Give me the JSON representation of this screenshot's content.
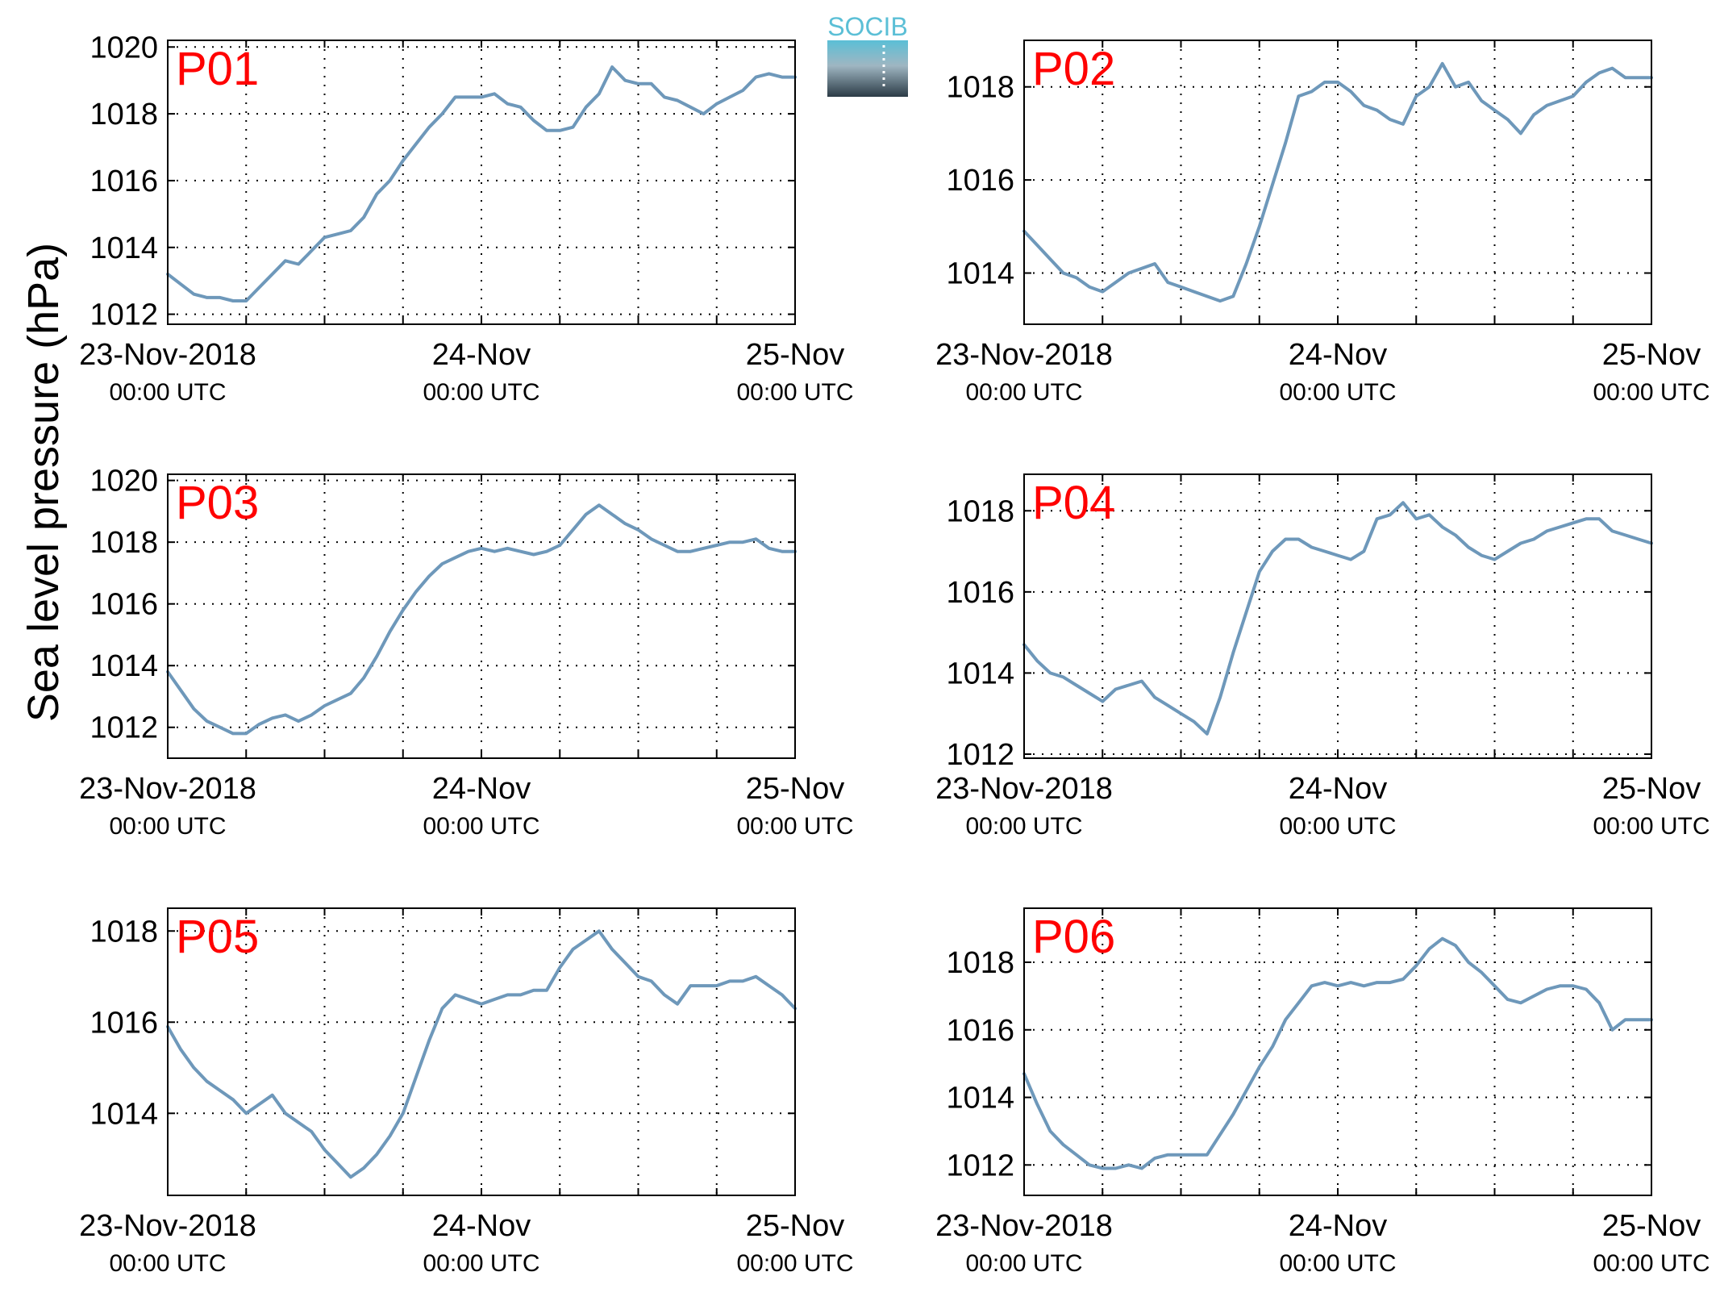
{
  "figure": {
    "ylabel": "Sea level pressure (hPa)",
    "logo_text": "SOCIB",
    "colors": {
      "line": "#6e98ba",
      "panel_label": "#ff0000",
      "axis": "#000000"
    }
  },
  "chart_data": [
    {
      "type": "line",
      "panel": "P01",
      "ylim": [
        1011.7,
        1020.2
      ],
      "yticks": [
        1012,
        1014,
        1016,
        1018,
        1020
      ],
      "xlim": [
        0,
        48
      ],
      "grid": true,
      "xtick_labels": [
        "23-Nov-2018",
        "24-Nov",
        "25-Nov"
      ],
      "xtick_sublabels": [
        "00:00 UTC",
        "00:00 UTC",
        "00:00 UTC"
      ],
      "x": [
        0,
        1,
        2,
        3,
        4,
        5,
        6,
        7,
        8,
        9,
        10,
        11,
        12,
        13,
        14,
        15,
        16,
        17,
        18,
        19,
        20,
        21,
        22,
        23,
        24,
        25,
        26,
        27,
        28,
        29,
        30,
        31,
        32,
        33,
        34,
        35,
        36,
        37,
        38,
        39,
        40,
        41,
        42,
        43,
        44,
        45,
        46,
        47,
        48
      ],
      "y": [
        1013.2,
        1012.9,
        1012.6,
        1012.5,
        1012.5,
        1012.4,
        1012.4,
        1012.8,
        1013.2,
        1013.6,
        1013.5,
        1013.9,
        1014.3,
        1014.4,
        1014.5,
        1014.9,
        1015.6,
        1016.0,
        1016.6,
        1017.1,
        1017.6,
        1018.0,
        1018.5,
        1018.5,
        1018.5,
        1018.6,
        1018.3,
        1018.2,
        1017.8,
        1017.5,
        1017.5,
        1017.6,
        1018.2,
        1018.6,
        1019.4,
        1019.0,
        1018.9,
        1018.9,
        1018.5,
        1018.4,
        1018.2,
        1018.0,
        1018.3,
        1018.5,
        1018.7,
        1019.1,
        1019.2,
        1019.1,
        1019.1
      ]
    },
    {
      "type": "line",
      "panel": "P02",
      "ylim": [
        1012.9,
        1019.0
      ],
      "yticks": [
        1014,
        1016,
        1018
      ],
      "xlim": [
        0,
        48
      ],
      "grid": true,
      "xtick_labels": [
        "23-Nov-2018",
        "24-Nov",
        "25-Nov"
      ],
      "xtick_sublabels": [
        "00:00 UTC",
        "00:00 UTC",
        "00:00 UTC"
      ],
      "x": [
        0,
        1,
        2,
        3,
        4,
        5,
        6,
        7,
        8,
        9,
        10,
        11,
        12,
        13,
        14,
        15,
        16,
        17,
        18,
        19,
        20,
        21,
        22,
        23,
        24,
        25,
        26,
        27,
        28,
        29,
        30,
        31,
        32,
        33,
        34,
        35,
        36,
        37,
        38,
        39,
        40,
        41,
        42,
        43,
        44,
        45,
        46,
        47,
        48
      ],
      "y": [
        1014.9,
        1014.6,
        1014.3,
        1014.0,
        1013.9,
        1013.7,
        1013.6,
        1013.8,
        1014.0,
        1014.1,
        1014.2,
        1013.8,
        1013.7,
        1013.6,
        1013.5,
        1013.4,
        1013.5,
        1014.2,
        1015.0,
        1015.9,
        1016.8,
        1017.8,
        1017.9,
        1018.1,
        1018.1,
        1017.9,
        1017.6,
        1017.5,
        1017.3,
        1017.2,
        1017.8,
        1018.0,
        1018.5,
        1018.0,
        1018.1,
        1017.7,
        1017.5,
        1017.3,
        1017.0,
        1017.4,
        1017.6,
        1017.7,
        1017.8,
        1018.1,
        1018.3,
        1018.4,
        1018.2,
        1018.2,
        1018.2
      ]
    },
    {
      "type": "line",
      "panel": "P03",
      "ylim": [
        1011.0,
        1020.2
      ],
      "yticks": [
        1012,
        1014,
        1016,
        1018,
        1020
      ],
      "xlim": [
        0,
        48
      ],
      "grid": true,
      "xtick_labels": [
        "23-Nov-2018",
        "24-Nov",
        "25-Nov"
      ],
      "xtick_sublabels": [
        "00:00 UTC",
        "00:00 UTC",
        "00:00 UTC"
      ],
      "x": [
        0,
        1,
        2,
        3,
        4,
        5,
        6,
        7,
        8,
        9,
        10,
        11,
        12,
        13,
        14,
        15,
        16,
        17,
        18,
        19,
        20,
        21,
        22,
        23,
        24,
        25,
        26,
        27,
        28,
        29,
        30,
        31,
        32,
        33,
        34,
        35,
        36,
        37,
        38,
        39,
        40,
        41,
        42,
        43,
        44,
        45,
        46,
        47,
        48
      ],
      "y": [
        1013.8,
        1013.2,
        1012.6,
        1012.2,
        1012.0,
        1011.8,
        1011.8,
        1012.1,
        1012.3,
        1012.4,
        1012.2,
        1012.4,
        1012.7,
        1012.9,
        1013.1,
        1013.6,
        1014.3,
        1015.1,
        1015.8,
        1016.4,
        1016.9,
        1017.3,
        1017.5,
        1017.7,
        1017.8,
        1017.7,
        1017.8,
        1017.7,
        1017.6,
        1017.7,
        1017.9,
        1018.4,
        1018.9,
        1019.2,
        1018.9,
        1018.6,
        1018.4,
        1018.1,
        1017.9,
        1017.7,
        1017.7,
        1017.8,
        1017.9,
        1018.0,
        1018.0,
        1018.1,
        1017.8,
        1017.7,
        1017.7
      ]
    },
    {
      "type": "line",
      "panel": "P04",
      "ylim": [
        1011.9,
        1018.9
      ],
      "yticks": [
        1012,
        1014,
        1016,
        1018
      ],
      "xlim": [
        0,
        48
      ],
      "grid": true,
      "xtick_labels": [
        "23-Nov-2018",
        "24-Nov",
        "25-Nov"
      ],
      "xtick_sublabels": [
        "00:00 UTC",
        "00:00 UTC",
        "00:00 UTC"
      ],
      "x": [
        0,
        1,
        2,
        3,
        4,
        5,
        6,
        7,
        8,
        9,
        10,
        11,
        12,
        13,
        14,
        15,
        16,
        17,
        18,
        19,
        20,
        21,
        22,
        23,
        24,
        25,
        26,
        27,
        28,
        29,
        30,
        31,
        32,
        33,
        34,
        35,
        36,
        37,
        38,
        39,
        40,
        41,
        42,
        43,
        44,
        45,
        46,
        47,
        48
      ],
      "y": [
        1014.7,
        1014.3,
        1014.0,
        1013.9,
        1013.7,
        1013.5,
        1013.3,
        1013.6,
        1013.7,
        1013.8,
        1013.4,
        1013.2,
        1013.0,
        1012.8,
        1012.5,
        1013.4,
        1014.5,
        1015.5,
        1016.5,
        1017.0,
        1017.3,
        1017.3,
        1017.1,
        1017.0,
        1016.9,
        1016.8,
        1017.0,
        1017.8,
        1017.9,
        1018.2,
        1017.8,
        1017.9,
        1017.6,
        1017.4,
        1017.1,
        1016.9,
        1016.8,
        1017.0,
        1017.2,
        1017.3,
        1017.5,
        1017.6,
        1017.7,
        1017.8,
        1017.8,
        1017.5,
        1017.4,
        1017.3,
        1017.2
      ]
    },
    {
      "type": "line",
      "panel": "P05",
      "ylim": [
        1012.2,
        1018.5
      ],
      "yticks": [
        1014,
        1016,
        1018
      ],
      "xlim": [
        0,
        48
      ],
      "grid": true,
      "xtick_labels": [
        "23-Nov-2018",
        "24-Nov",
        "25-Nov"
      ],
      "xtick_sublabels": [
        "00:00 UTC",
        "00:00 UTC",
        "00:00 UTC"
      ],
      "x": [
        0,
        1,
        2,
        3,
        4,
        5,
        6,
        7,
        8,
        9,
        10,
        11,
        12,
        13,
        14,
        15,
        16,
        17,
        18,
        19,
        20,
        21,
        22,
        23,
        24,
        25,
        26,
        27,
        28,
        29,
        30,
        31,
        32,
        33,
        34,
        35,
        36,
        37,
        38,
        39,
        40,
        41,
        42,
        43,
        44,
        45,
        46,
        47,
        48
      ],
      "y": [
        1015.9,
        1015.4,
        1015.0,
        1014.7,
        1014.5,
        1014.3,
        1014.0,
        1014.2,
        1014.4,
        1014.0,
        1013.8,
        1013.6,
        1013.2,
        1012.9,
        1012.6,
        1012.8,
        1013.1,
        1013.5,
        1014.0,
        1014.8,
        1015.6,
        1016.3,
        1016.6,
        1016.5,
        1016.4,
        1016.5,
        1016.6,
        1016.6,
        1016.7,
        1016.7,
        1017.2,
        1017.6,
        1017.8,
        1018.0,
        1017.6,
        1017.3,
        1017.0,
        1016.9,
        1016.6,
        1016.4,
        1016.8,
        1016.8,
        1016.8,
        1016.9,
        1016.9,
        1017.0,
        1016.8,
        1016.6,
        1016.3
      ]
    },
    {
      "type": "line",
      "panel": "P06",
      "ylim": [
        1011.1,
        1019.6
      ],
      "yticks": [
        1012,
        1014,
        1016,
        1018
      ],
      "xlim": [
        0,
        48
      ],
      "grid": true,
      "xtick_labels": [
        "23-Nov-2018",
        "24-Nov",
        "25-Nov"
      ],
      "xtick_sublabels": [
        "00:00 UTC",
        "00:00 UTC",
        "00:00 UTC"
      ],
      "x": [
        0,
        1,
        2,
        3,
        4,
        5,
        6,
        7,
        8,
        9,
        10,
        11,
        12,
        13,
        14,
        15,
        16,
        17,
        18,
        19,
        20,
        21,
        22,
        23,
        24,
        25,
        26,
        27,
        28,
        29,
        30,
        31,
        32,
        33,
        34,
        35,
        36,
        37,
        38,
        39,
        40,
        41,
        42,
        43,
        44,
        45,
        46,
        47,
        48
      ],
      "y": [
        1014.7,
        1013.8,
        1013.0,
        1012.6,
        1012.3,
        1012.0,
        1011.9,
        1011.9,
        1012.0,
        1011.9,
        1012.2,
        1012.3,
        1012.3,
        1012.3,
        1012.3,
        1012.9,
        1013.5,
        1014.2,
        1014.9,
        1015.5,
        1016.3,
        1016.8,
        1017.3,
        1017.4,
        1017.3,
        1017.4,
        1017.3,
        1017.4,
        1017.4,
        1017.5,
        1017.9,
        1018.4,
        1018.7,
        1018.5,
        1018.0,
        1017.7,
        1017.3,
        1016.9,
        1016.8,
        1017.0,
        1017.2,
        1017.3,
        1017.3,
        1017.2,
        1016.8,
        1016.0,
        1016.3,
        1016.3,
        1016.3
      ]
    }
  ]
}
